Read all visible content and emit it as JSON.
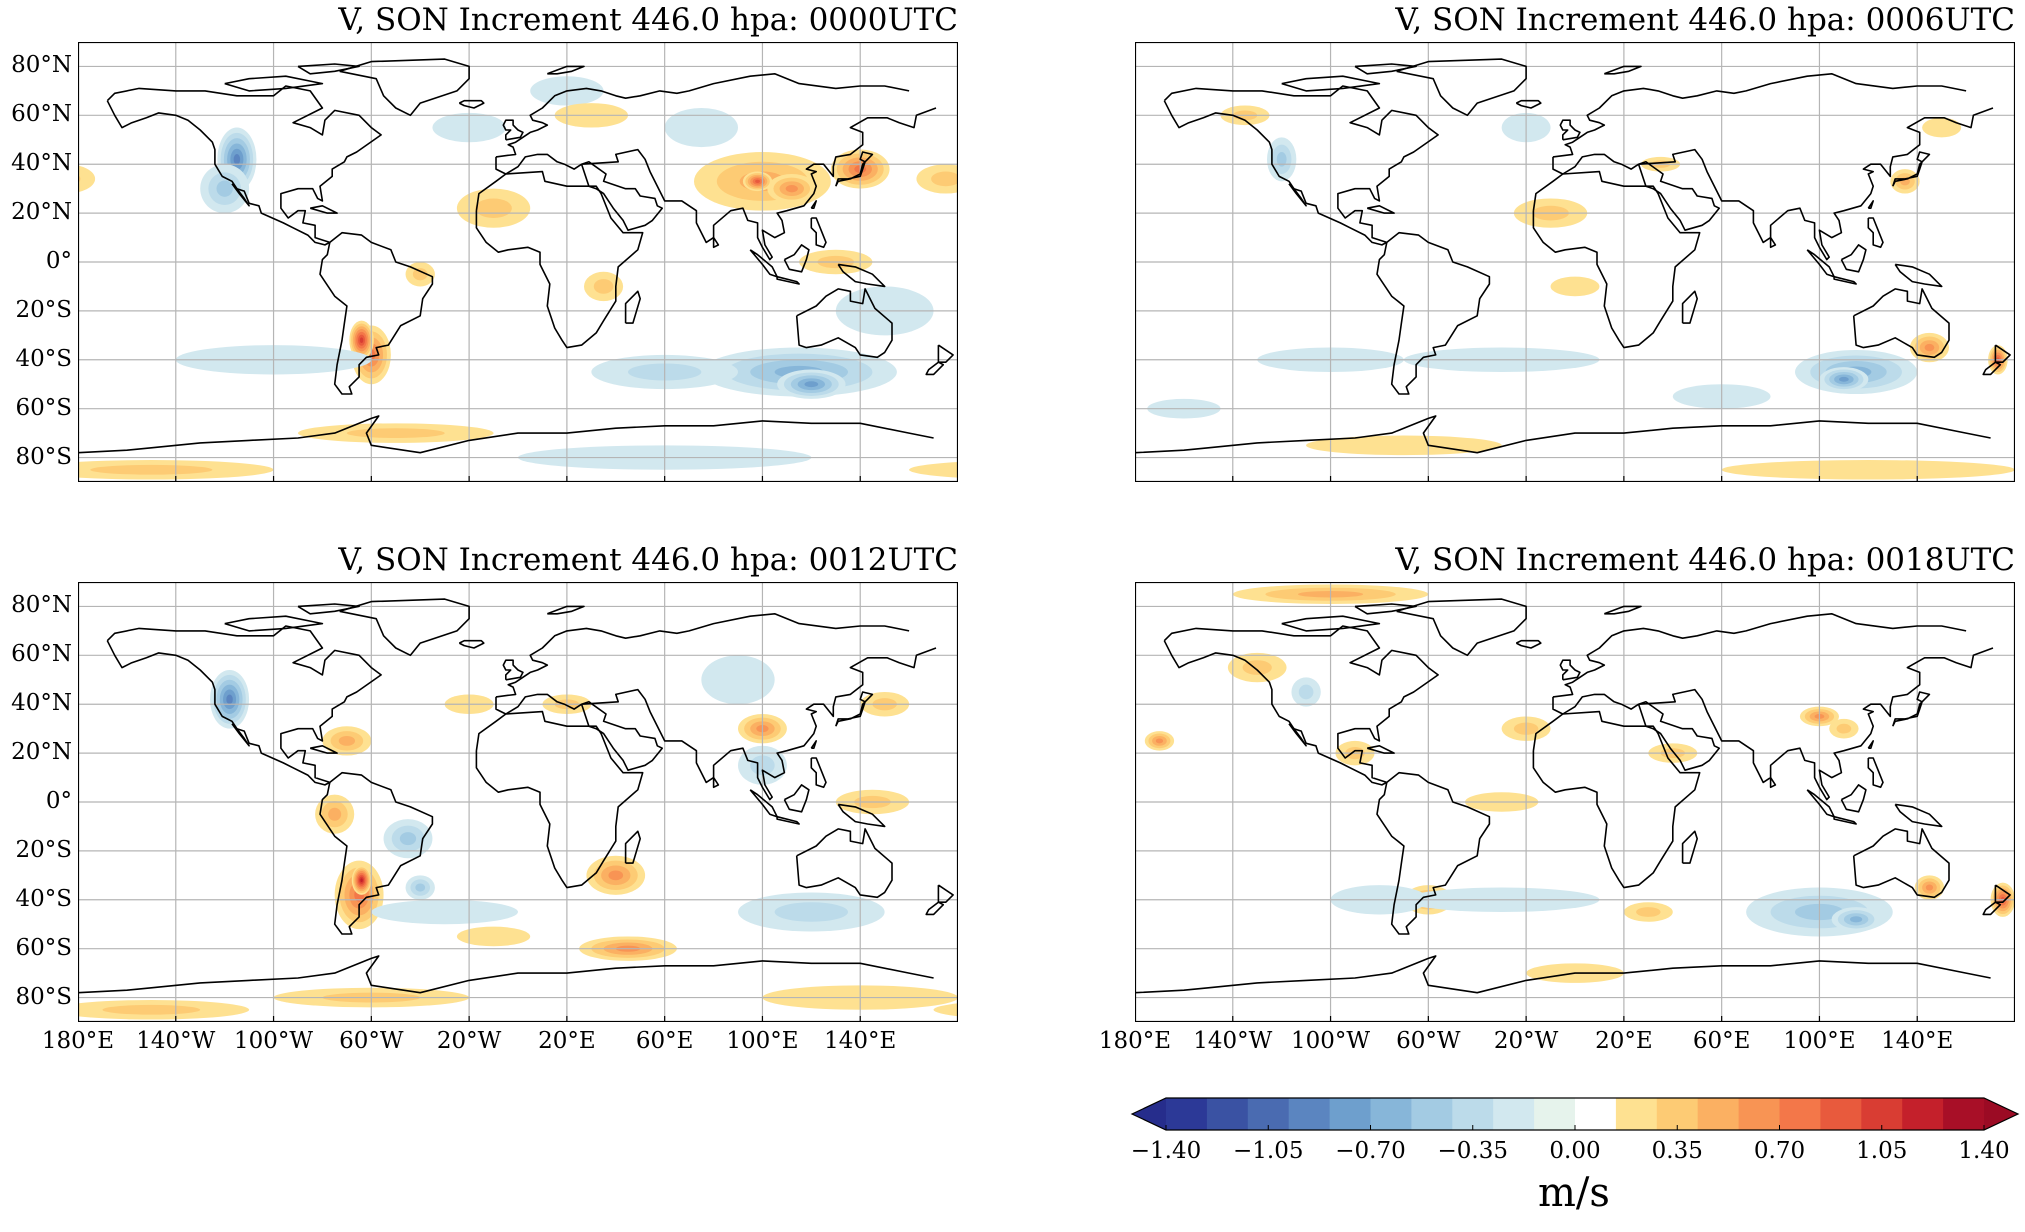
{
  "panels": [
    {
      "title": "V, SON Increment 446.0 hpa: 0000UTC",
      "utc": "0000",
      "show_lat_labels": true,
      "show_lon_labels": false
    },
    {
      "title": "V, SON Increment 446.0 hpa: 0006UTC",
      "utc": "0006",
      "show_lat_labels": false,
      "show_lon_labels": false
    },
    {
      "title": "V, SON Increment 446.0 hpa: 0012UTC",
      "utc": "0012",
      "show_lat_labels": true,
      "show_lon_labels": true
    },
    {
      "title": "V, SON Increment 446.0 hpa: 0018UTC",
      "utc": "0018",
      "show_lat_labels": false,
      "show_lon_labels": true
    }
  ],
  "lat_labels": [
    "80°N",
    "60°N",
    "40°N",
    "20°N",
    "0°",
    "20°S",
    "40°S",
    "60°S",
    "80°S"
  ],
  "lat_values": [
    80,
    60,
    40,
    20,
    0,
    -20,
    -40,
    -60,
    -80
  ],
  "lon_labels": [
    "20°E",
    "60°E",
    "100°E",
    "140°E",
    "180°E",
    "140°W",
    "100°W",
    "60°W",
    "20°W"
  ],
  "lon_values": [
    20,
    60,
    100,
    140,
    180,
    220,
    260,
    300,
    340
  ],
  "map_extent": {
    "lon_min": 0,
    "lon_max": 360,
    "lat_min": -90,
    "lat_max": 90,
    "central_longitude": 180
  },
  "colorbar": {
    "label": "m/s",
    "ticks": [
      "−1.40",
      "−1.05",
      "−0.70",
      "−0.35",
      "0.00",
      "0.35",
      "0.70",
      "1.05",
      "1.40"
    ],
    "levels": [
      -1.4,
      -1.26,
      -1.12,
      -0.98,
      -0.84,
      -0.7,
      -0.56,
      -0.42,
      -0.28,
      -0.14,
      0.0,
      0.14,
      0.28,
      0.42,
      0.56,
      0.7,
      0.84,
      0.98,
      1.12,
      1.26,
      1.4
    ],
    "colors": [
      "#2c3997",
      "#3a52a3",
      "#4a6bb1",
      "#5b85c0",
      "#6e9fcd",
      "#87b6d9",
      "#a3cbe3",
      "#bcdbea",
      "#d2e8ef",
      "#e6f3ec",
      "#ffffff",
      "#fee191",
      "#fdcb74",
      "#fbb062",
      "#f89454",
      "#f37749",
      "#e85a3d",
      "#d93d33",
      "#c4202b",
      "#a80f27"
    ],
    "extend": "both"
  }
}
